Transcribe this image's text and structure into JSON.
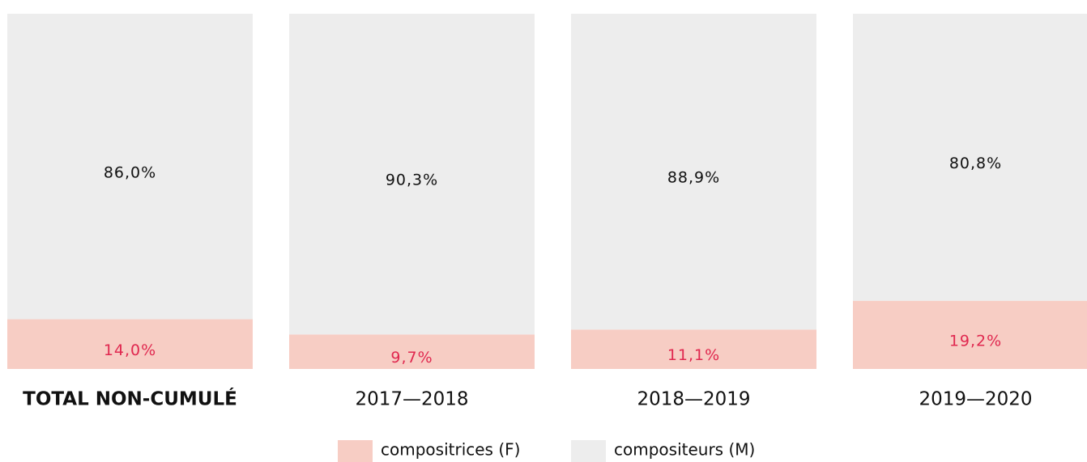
{
  "chart_data": {
    "type": "stacked_bar",
    "categories": [
      "TOTAL NON-CUMULÉ",
      "2017—2018",
      "2018—2019",
      "2019—2020"
    ],
    "series": [
      {
        "name": "compositrices (F)",
        "color": "#f7cdc4",
        "label_color": "#e0284f",
        "values": [
          14.0,
          9.7,
          11.1,
          19.2
        ],
        "value_labels": [
          "14,0%",
          "9,7%",
          "11,1%",
          "19,2%"
        ]
      },
      {
        "name": "compositeurs (M)",
        "color": "#ededed",
        "label_color": "#111111",
        "values": [
          86.0,
          90.3,
          88.9,
          80.8
        ],
        "value_labels": [
          "86,0%",
          "90,3%",
          "88,9%",
          "80,8%"
        ]
      }
    ],
    "ylim": [
      0,
      100
    ]
  }
}
